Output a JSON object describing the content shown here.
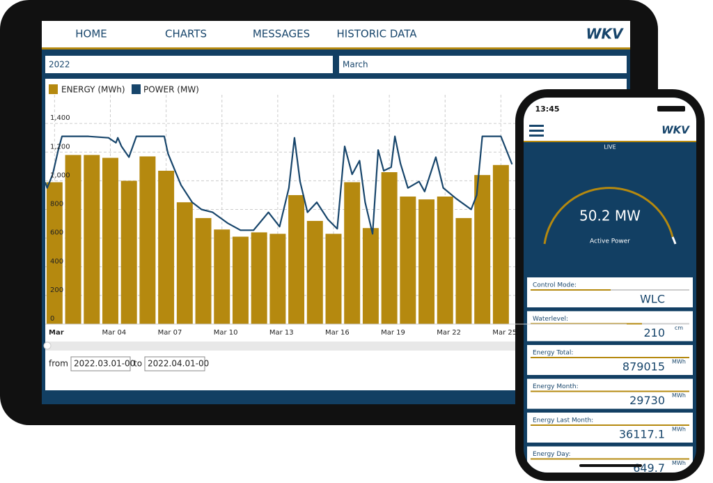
{
  "chart_data": {
    "type": "bar+line",
    "categories": [
      "Mar",
      null,
      null,
      "Mar 04",
      null,
      null,
      "Mar 07",
      null,
      null,
      "Mar 10",
      null,
      null,
      "Mar 13",
      null,
      null,
      "Mar 16",
      null,
      null,
      "Mar 19",
      null,
      null,
      "Mar 22",
      null,
      null,
      "Mar 25"
    ],
    "series": [
      {
        "name": "ENERGY (MWh)",
        "color": "#b5890f",
        "values": [
          990,
          1180,
          1180,
          1160,
          1000,
          1170,
          1070,
          850,
          740,
          660,
          610,
          640,
          630,
          900,
          720,
          630,
          990,
          670,
          1060,
          890,
          870,
          890,
          740,
          1040,
          1110
        ]
      },
      {
        "name": "POWER (MW)",
        "color": "#17456b",
        "x": [
          0.5,
          0.6,
          0.9,
          1.2,
          1.4,
          2.0,
          2.8,
          3.9,
          4.3,
          4.4,
          4.6,
          5.0,
          5.4,
          6.9,
          7.1,
          7.4,
          7.8,
          8.4,
          8.9,
          9.5,
          10.3,
          11.0,
          11.7,
          12.5,
          13.1,
          13.6,
          13.9,
          14.2,
          14.6,
          15.1,
          15.7,
          16.2,
          16.6,
          17.0,
          17.4,
          17.7,
          18.1,
          18.4,
          18.7,
          19.1,
          19.3,
          19.6,
          20.0,
          20.6,
          20.9,
          21.5,
          21.9,
          22.6,
          23.4,
          23.7,
          24.0,
          25.0,
          25.6
        ],
        "values": [
          990,
          950,
          1045,
          1215,
          1310,
          1310,
          1310,
          1300,
          1265,
          1300,
          1240,
          1165,
          1310,
          1310,
          1190,
          1095,
          970,
          850,
          800,
          780,
          705,
          655,
          655,
          780,
          680,
          950,
          1300,
          995,
          780,
          850,
          730,
          665,
          1240,
          1045,
          1140,
          850,
          630,
          1215,
          1070,
          1095,
          1310,
          1120,
          950,
          995,
          925,
          1165,
          950,
          875,
          800,
          900,
          1310,
          1310,
          1115
        ]
      }
    ],
    "xlim": [
      0.5,
      31.5
    ],
    "ylim": [
      0,
      1600
    ],
    "yticks": [
      0,
      200,
      400,
      600,
      800,
      {
        "value": 1000,
        "label": "1,000"
      },
      {
        "value": 1200,
        "label": "1,200"
      },
      {
        "value": 1400,
        "label": "1,400"
      }
    ],
    "grid": true
  },
  "tablet": {
    "nav": [
      "HOME",
      "CHARTS",
      "MESSAGES",
      "HISTORIC DATA"
    ],
    "logo": "WKV",
    "year": "2022",
    "month": "March",
    "range": {
      "from_label": "from",
      "from": "2022.03.01-00",
      "to_label": "to",
      "to": "2022.04.01-00"
    }
  },
  "phone": {
    "time": "13:45",
    "logo": "WKV",
    "live": "LIVE",
    "gauge_value": "50.2 MW",
    "gauge_label": "Active Power",
    "cards": [
      {
        "label": "Control Mode:",
        "value": "WLC"
      },
      {
        "label": "Waterlevel:",
        "value": "210",
        "unit": "cm"
      },
      {
        "label": "Energy Total:",
        "value": "879015",
        "unit": "MWh"
      },
      {
        "label": "Energy Month:",
        "value": "29730",
        "unit": "MWh"
      },
      {
        "label": "Energy Last Month:",
        "value": "36117.1",
        "unit": "MWh"
      },
      {
        "label": "Energy Day:",
        "value": "649.7",
        "unit": "MWh"
      }
    ]
  }
}
